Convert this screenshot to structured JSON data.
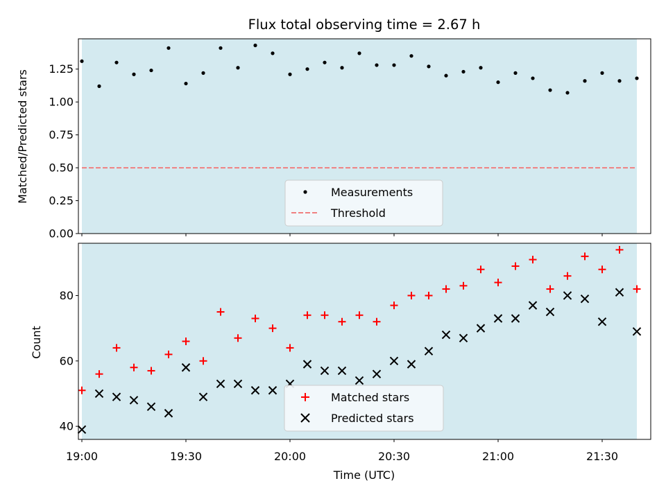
{
  "chart_data": [
    {
      "type": "scatter",
      "title": "Flux total observing time = 2.67 h",
      "ylabel": "Matched/Predicted stars",
      "xlabel": "",
      "xlim": [
        "18:59",
        "21:44"
      ],
      "ylim": [
        0,
        1.48
      ],
      "shaded_region": [
        "19:00",
        "21:40"
      ],
      "shade_color": "#d4eaf0",
      "x_ticks": [
        "19:00",
        "19:30",
        "20:00",
        "20:30",
        "21:00",
        "21:30"
      ],
      "x_tick_labels_visible": false,
      "y_ticks": [
        "0.00",
        "0.25",
        "0.50",
        "0.75",
        "1.00",
        "1.25"
      ],
      "legend_position": "lower-center",
      "series": [
        {
          "name": "Measurements",
          "marker": "dot",
          "color": "#000000",
          "x": [
            "19:00",
            "19:05",
            "19:10",
            "19:15",
            "19:20",
            "19:25",
            "19:30",
            "19:35",
            "19:40",
            "19:45",
            "19:50",
            "19:55",
            "20:00",
            "20:05",
            "20:10",
            "20:15",
            "20:20",
            "20:25",
            "20:30",
            "20:35",
            "20:40",
            "20:45",
            "20:50",
            "20:55",
            "21:00",
            "21:05",
            "21:10",
            "21:15",
            "21:20",
            "21:25",
            "21:30",
            "21:35",
            "21:40"
          ],
          "y": [
            1.31,
            1.12,
            1.3,
            1.21,
            1.24,
            1.41,
            1.14,
            1.22,
            1.41,
            1.26,
            1.43,
            1.37,
            1.21,
            1.25,
            1.3,
            1.26,
            1.37,
            1.28,
            1.28,
            1.35,
            1.27,
            1.2,
            1.23,
            1.26,
            1.15,
            1.22,
            1.18,
            1.09,
            1.07,
            1.16,
            1.22,
            1.16,
            1.18
          ]
        }
      ],
      "threshold": {
        "name": "Threshold",
        "value": 0.5,
        "color": "#f08080",
        "style": "dashed",
        "x": [
          "19:00",
          "21:40"
        ]
      }
    },
    {
      "type": "scatter",
      "title": "",
      "ylabel": "Count",
      "xlabel": "Time (UTC)",
      "xlim": [
        "18:59",
        "21:44"
      ],
      "ylim": [
        36,
        96
      ],
      "shaded_region": [
        "19:00",
        "21:40"
      ],
      "shade_color": "#d4eaf0",
      "x_ticks": [
        "19:00",
        "19:30",
        "20:00",
        "20:30",
        "21:00",
        "21:30"
      ],
      "x_tick_labels_visible": true,
      "y_ticks": [
        "40",
        "60",
        "80"
      ],
      "legend_position": "lower-center",
      "series": [
        {
          "name": "Matched stars",
          "marker": "plus",
          "color": "#ff0000",
          "x": [
            "19:00",
            "19:05",
            "19:10",
            "19:15",
            "19:20",
            "19:25",
            "19:30",
            "19:35",
            "19:40",
            "19:45",
            "19:50",
            "19:55",
            "20:00",
            "20:05",
            "20:10",
            "20:15",
            "20:20",
            "20:25",
            "20:30",
            "20:35",
            "20:40",
            "20:45",
            "20:50",
            "20:55",
            "21:00",
            "21:05",
            "21:10",
            "21:15",
            "21:20",
            "21:25",
            "21:30",
            "21:35",
            "21:40"
          ],
          "y": [
            51,
            56,
            64,
            58,
            57,
            62,
            66,
            60,
            75,
            67,
            73,
            70,
            64,
            74,
            74,
            72,
            74,
            72,
            77,
            80,
            80,
            82,
            83,
            88,
            84,
            89,
            91,
            82,
            86,
            92,
            88,
            94,
            82
          ]
        },
        {
          "name": "Predicted stars",
          "marker": "x",
          "color": "#000000",
          "x": [
            "19:00",
            "19:05",
            "19:10",
            "19:15",
            "19:20",
            "19:25",
            "19:30",
            "19:35",
            "19:40",
            "19:45",
            "19:50",
            "19:55",
            "20:00",
            "20:05",
            "20:10",
            "20:15",
            "20:20",
            "20:25",
            "20:30",
            "20:35",
            "20:40",
            "20:45",
            "20:50",
            "20:55",
            "21:00",
            "21:05",
            "21:10",
            "21:15",
            "21:20",
            "21:25",
            "21:30",
            "21:35",
            "21:40"
          ],
          "y": [
            39,
            50,
            49,
            48,
            46,
            44,
            58,
            49,
            53,
            53,
            51,
            51,
            53,
            59,
            57,
            57,
            54,
            56,
            60,
            59,
            63,
            68,
            67,
            70,
            73,
            73,
            77,
            75,
            80,
            79,
            72,
            81,
            69
          ]
        }
      ]
    }
  ]
}
